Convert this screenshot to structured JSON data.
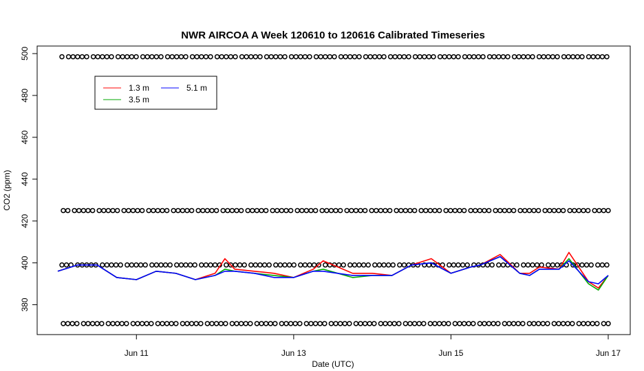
{
  "chart_data": {
    "type": "line",
    "title": "NWR AIRCOA A  Week 120610 to 120616  Calibrated Timeseries",
    "xlabel": "Date (UTC)",
    "ylabel": "CO2 (ppm)",
    "xlim": [
      "2012-06-10T00:00",
      "2012-06-17T00:00"
    ],
    "ylim": [
      370,
      500
    ],
    "x_ticks": [
      {
        "value": "2012-06-11",
        "label": "Jun 11"
      },
      {
        "value": "2012-06-13",
        "label": "Jun 13"
      },
      {
        "value": "2012-06-15",
        "label": "Jun 15"
      },
      {
        "value": "2012-06-17",
        "label": "Jun 17"
      }
    ],
    "y_ticks": [
      380,
      400,
      420,
      440,
      460,
      480,
      500
    ],
    "grid": false,
    "legend": {
      "position": "top-left",
      "entries": [
        "1.3 m",
        "3.5 m",
        "5.1 m"
      ]
    },
    "colors": {
      "1.3 m": "#ff0000",
      "3.5 m": "#00aa00",
      "5.1 m": "#0000ff",
      "reference": "#000000"
    },
    "reference_levels": [
      {
        "name": "",
        "y": 498.5
      },
      {
        "name": "",
        "y": 425
      },
      {
        "name": "",
        "y": 399
      },
      {
        "name": "",
        "y": 371
      }
    ],
    "series": [
      {
        "name": "1.3 m",
        "x": [
          "2012-06-10T00:00",
          "2012-06-10T06:00",
          "2012-06-10T12:00",
          "2012-06-10T18:00",
          "2012-06-11T00:00",
          "2012-06-11T06:00",
          "2012-06-11T12:00",
          "2012-06-11T18:00",
          "2012-06-12T00:00",
          "2012-06-12T03:00",
          "2012-06-12T06:00",
          "2012-06-12T12:00",
          "2012-06-12T18:00",
          "2012-06-13T00:00",
          "2012-06-13T06:00",
          "2012-06-13T09:00",
          "2012-06-13T18:00",
          "2012-06-14T00:00",
          "2012-06-14T06:00",
          "2012-06-14T12:00",
          "2012-06-14T18:00",
          "2012-06-15T00:00",
          "2012-06-15T06:00",
          "2012-06-15T09:00",
          "2012-06-15T15:00",
          "2012-06-15T21:00",
          "2012-06-16T00:00",
          "2012-06-16T03:00",
          "2012-06-16T09:00",
          "2012-06-16T12:00",
          "2012-06-16T18:00",
          "2012-06-16T21:00",
          "2012-06-17T00:00"
        ],
        "y": [
          396,
          399,
          399,
          393,
          392,
          396,
          395,
          392,
          395,
          402,
          397,
          396,
          395,
          393,
          397,
          401,
          395,
          395,
          394,
          399,
          402,
          395,
          398,
          399,
          404,
          395,
          395,
          398,
          397,
          405,
          391,
          388,
          394
        ]
      },
      {
        "name": "3.5 m",
        "x": [
          "2012-06-10T00:00",
          "2012-06-10T06:00",
          "2012-06-10T12:00",
          "2012-06-10T18:00",
          "2012-06-11T00:00",
          "2012-06-11T06:00",
          "2012-06-11T12:00",
          "2012-06-11T18:00",
          "2012-06-12T00:00",
          "2012-06-12T03:00",
          "2012-06-12T06:00",
          "2012-06-12T12:00",
          "2012-06-12T18:00",
          "2012-06-13T00:00",
          "2012-06-13T06:00",
          "2012-06-13T09:00",
          "2012-06-13T18:00",
          "2012-06-14T00:00",
          "2012-06-14T06:00",
          "2012-06-14T12:00",
          "2012-06-14T18:00",
          "2012-06-15T00:00",
          "2012-06-15T06:00",
          "2012-06-15T09:00",
          "2012-06-15T15:00",
          "2012-06-15T21:00",
          "2012-06-16T00:00",
          "2012-06-16T03:00",
          "2012-06-16T09:00",
          "2012-06-16T12:00",
          "2012-06-16T18:00",
          "2012-06-16T21:00",
          "2012-06-17T00:00"
        ],
        "y": [
          396,
          399,
          399,
          393,
          392,
          396,
          395,
          392,
          394,
          397,
          396,
          395,
          394,
          393,
          396,
          397,
          393,
          394,
          394,
          399,
          400,
          395,
          398,
          399,
          403,
          395,
          394,
          397,
          397,
          402,
          390,
          387,
          394
        ]
      },
      {
        "name": "5.1 m",
        "x": [
          "2012-06-10T00:00",
          "2012-06-10T06:00",
          "2012-06-10T12:00",
          "2012-06-10T18:00",
          "2012-06-11T00:00",
          "2012-06-11T06:00",
          "2012-06-11T12:00",
          "2012-06-11T18:00",
          "2012-06-12T00:00",
          "2012-06-12T03:00",
          "2012-06-12T06:00",
          "2012-06-12T12:00",
          "2012-06-12T18:00",
          "2012-06-13T00:00",
          "2012-06-13T06:00",
          "2012-06-13T09:00",
          "2012-06-13T18:00",
          "2012-06-14T00:00",
          "2012-06-14T06:00",
          "2012-06-14T12:00",
          "2012-06-14T18:00",
          "2012-06-15T00:00",
          "2012-06-15T06:00",
          "2012-06-15T09:00",
          "2012-06-15T15:00",
          "2012-06-15T21:00",
          "2012-06-16T00:00",
          "2012-06-16T03:00",
          "2012-06-16T09:00",
          "2012-06-16T12:00",
          "2012-06-16T18:00",
          "2012-06-16T21:00",
          "2012-06-17T00:00"
        ],
        "y": [
          396,
          399,
          399,
          393,
          392,
          396,
          395,
          392,
          394,
          396,
          396,
          395,
          393,
          393,
          396,
          396,
          394,
          394,
          394,
          399,
          400,
          395,
          398,
          399,
          403,
          395,
          394,
          397,
          397,
          401,
          391,
          390,
          394
        ]
      }
    ]
  }
}
